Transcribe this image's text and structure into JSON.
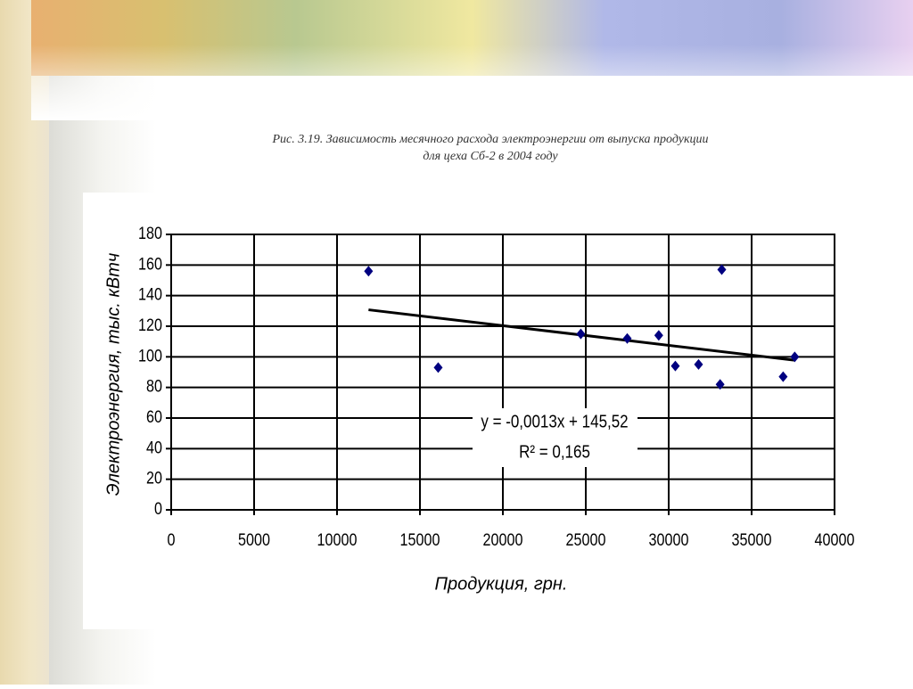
{
  "chart_data": {
    "type": "scatter",
    "title": [
      "Рис. 3.19. Зависимость месячного расхода электроэнергии от выпуска продукции",
      "для цеха Сб-2 в 2004 году"
    ],
    "x_label": "Продукция, грн.",
    "y_label": "Электроэнергия, тыс. кВтч",
    "x": [
      11900,
      16100,
      24700,
      27500,
      29400,
      30400,
      31800,
      33200,
      33100,
      36900,
      37600
    ],
    "values": [
      156,
      93,
      115,
      112,
      114,
      94,
      95,
      157,
      82,
      87,
      100
    ],
    "color": "#000080",
    "trendline": true,
    "annotations": [
      "y = -0,0013x + 145,52",
      "R² = 0,165"
    ],
    "xlim": [
      0,
      40000
    ],
    "xticks": [
      0,
      5000,
      10000,
      15000,
      20000,
      25000,
      30000,
      35000,
      40000
    ],
    "ylim": [
      0,
      180
    ],
    "yticks": [
      0,
      20,
      40,
      60,
      80,
      100,
      120,
      140,
      160,
      180
    ],
    "grid": true
  }
}
